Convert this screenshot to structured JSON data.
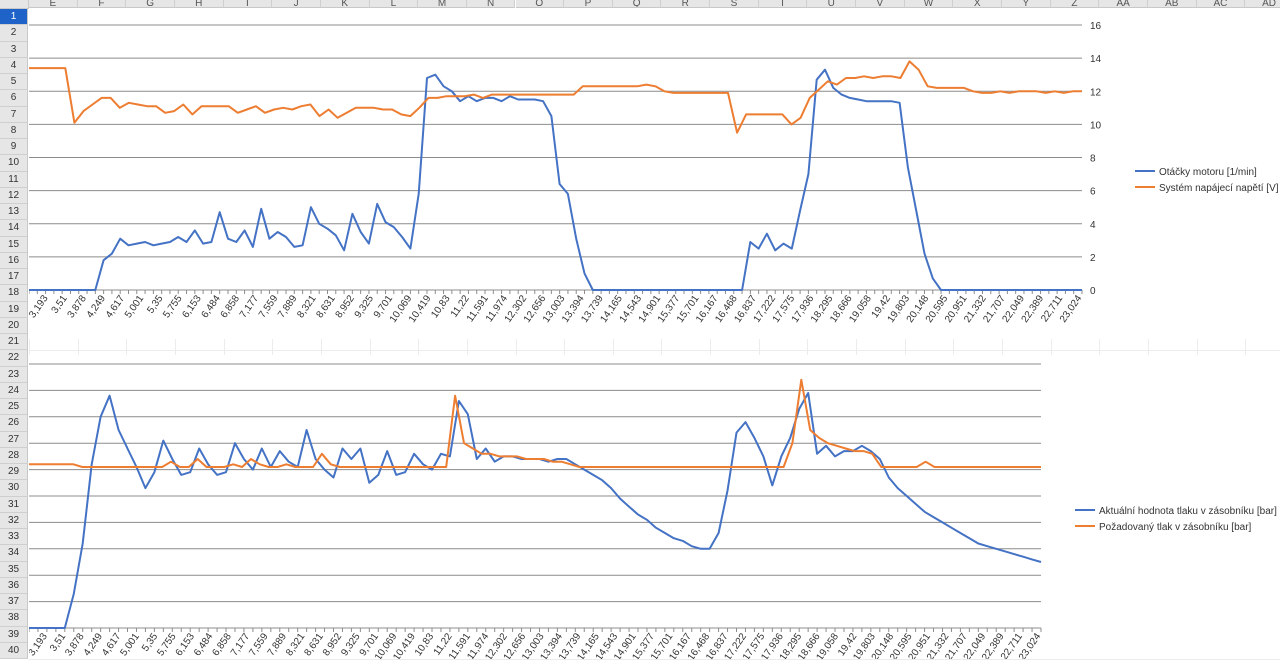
{
  "sheet": {
    "columns": [
      "E",
      "F",
      "G",
      "H",
      "I",
      "J",
      "K",
      "L",
      "M",
      "N",
      "O",
      "P",
      "Q",
      "R",
      "S",
      "T",
      "U",
      "V",
      "W",
      "X",
      "Y",
      "Z",
      "AA",
      "AB",
      "AC",
      "AD"
    ],
    "rows": [
      "1",
      "2",
      "3",
      "4",
      "5",
      "6",
      "7",
      "8",
      "9",
      "10",
      "11",
      "12",
      "13",
      "14",
      "15",
      "16",
      "17",
      "18",
      "19",
      "20",
      "21",
      "22",
      "23",
      "24",
      "25",
      "26",
      "27",
      "28",
      "29",
      "30",
      "31",
      "32",
      "33",
      "34",
      "35",
      "36",
      "37",
      "38",
      "39",
      "40"
    ],
    "selected_row": "1"
  },
  "chart_data": [
    {
      "type": "line",
      "y_right_axis": true,
      "ylim": [
        0,
        16
      ],
      "yticks": [
        "0",
        "2",
        "4",
        "6",
        "8",
        "10",
        "12",
        "14",
        "16"
      ],
      "x_tick_labels": [
        "2,802",
        "3,193",
        "3,51",
        "3,878",
        "4,249",
        "4,617",
        "5,001",
        "5,35",
        "5,755",
        "6,153",
        "6,484",
        "6,858",
        "7,177",
        "7,559",
        "7,889",
        "8,321",
        "8,631",
        "8,952",
        "9,325",
        "9,701",
        "10,069",
        "10,419",
        "10,83",
        "11,22",
        "11,591",
        "11,974",
        "12,302",
        "12,656",
        "13,003",
        "13,394",
        "13,739",
        "14,165",
        "14,543",
        "14,901",
        "15,377",
        "15,701",
        "16,167",
        "16,468",
        "16,837",
        "17,222",
        "17,575",
        "17,936",
        "18,295",
        "18,666",
        "19,058",
        "19,42",
        "19,803",
        "20,148",
        "20,595",
        "20,951",
        "21,332",
        "21,707",
        "22,049",
        "22,389",
        "22,711",
        "23,024"
      ],
      "legend_position": "right",
      "series": [
        {
          "name": "Otáčky motoru [1/min]",
          "color": "#4472c4",
          "values": [
            0,
            0,
            0,
            0,
            0,
            0,
            0,
            0,
            0,
            1.8,
            2.2,
            3.1,
            2.7,
            2.8,
            2.9,
            2.7,
            2.8,
            2.9,
            3.2,
            2.9,
            3.6,
            2.8,
            2.9,
            4.7,
            3.1,
            2.9,
            3.6,
            2.6,
            4.9,
            3.1,
            3.5,
            3.2,
            2.6,
            2.7,
            5.0,
            4.0,
            3.7,
            3.3,
            2.4,
            4.6,
            3.5,
            2.8,
            5.2,
            4.1,
            3.8,
            3.2,
            2.5,
            5.8,
            12.8,
            13.0,
            12.3,
            12.0,
            11.4,
            11.7,
            11.4,
            11.6,
            11.6,
            11.4,
            11.7,
            11.5,
            11.5,
            11.5,
            11.4,
            10.5,
            6.4,
            5.8,
            3.1,
            1.0,
            0,
            0,
            0,
            0,
            0,
            0,
            0,
            0,
            0,
            0,
            0,
            0,
            0,
            0,
            0,
            0,
            0,
            0,
            0,
            2.9,
            2.5,
            3.4,
            2.4,
            2.8,
            2.5,
            4.8,
            7.0,
            12.7,
            13.3,
            12.2,
            11.8,
            11.6,
            11.5,
            11.4,
            11.4,
            11.4,
            11.4,
            11.3,
            7.4,
            4.8,
            2.2,
            0.7,
            0,
            0,
            0,
            0,
            0,
            0,
            0,
            0,
            0,
            0,
            0,
            0,
            0,
            0,
            0,
            0,
            0,
            0
          ]
        },
        {
          "name": "Systém napájecí napětí [V]",
          "color": "#ed7d31",
          "values": [
            13.4,
            13.4,
            13.4,
            13.4,
            13.4,
            10.1,
            10.8,
            11.2,
            11.6,
            11.6,
            11.0,
            11.3,
            11.2,
            11.1,
            11.1,
            10.7,
            10.8,
            11.2,
            10.6,
            11.1,
            11.1,
            11.1,
            11.1,
            10.7,
            10.9,
            11.1,
            10.7,
            10.9,
            11.0,
            10.9,
            11.1,
            11.2,
            10.5,
            10.9,
            10.4,
            10.7,
            11.0,
            11.0,
            11.0,
            10.9,
            10.9,
            10.6,
            10.5,
            11.0,
            11.6,
            11.6,
            11.7,
            11.7,
            11.7,
            11.8,
            11.6,
            11.8,
            11.8,
            11.8,
            11.8,
            11.8,
            11.8,
            11.8,
            11.8,
            11.8,
            11.8,
            12.3,
            12.3,
            12.3,
            12.3,
            12.3,
            12.3,
            12.3,
            12.4,
            12.3,
            12.0,
            11.9,
            11.9,
            11.9,
            11.9,
            11.9,
            11.9,
            11.9,
            9.5,
            10.6,
            10.6,
            10.6,
            10.6,
            10.6,
            10.0,
            10.4,
            11.6,
            12.1,
            12.6,
            12.4,
            12.8,
            12.8,
            12.9,
            12.8,
            12.9,
            12.9,
            12.8,
            13.8,
            13.3,
            12.3,
            12.2,
            12.2,
            12.2,
            12.2,
            12.0,
            11.9,
            11.9,
            12.0,
            11.9,
            12.0,
            12.0,
            12.0,
            11.9,
            12.0,
            11.9,
            12.0,
            12.0
          ]
        }
      ]
    },
    {
      "type": "line",
      "x_tick_labels": [
        "2,802",
        "3,193",
        "3,51",
        "3,878",
        "4,249",
        "4,617",
        "5,001",
        "5,35",
        "5,755",
        "6,153",
        "6,484",
        "6,858",
        "7,177",
        "7,559",
        "7,889",
        "8,321",
        "8,631",
        "8,952",
        "9,325",
        "9,701",
        "10,069",
        "10,419",
        "10,83",
        "11,22",
        "11,591",
        "11,974",
        "12,302",
        "12,656",
        "13,003",
        "13,394",
        "13,739",
        "14,165",
        "14,543",
        "14,901",
        "15,377",
        "15,701",
        "16,167",
        "16,468",
        "16,837",
        "17,222",
        "17,575",
        "17,936",
        "18,295",
        "18,666",
        "19,058",
        "19,42",
        "19,803",
        "20,148",
        "20,595",
        "20,951",
        "21,332",
        "21,707",
        "22,049",
        "22,389",
        "22,711",
        "23,024"
      ],
      "ylim": [
        0,
        10
      ],
      "legend_position": "right",
      "series": [
        {
          "name": "Aktuální hodnota tlaku v zásobníku [bar]",
          "color": "#4472c4",
          "values": [
            0,
            0,
            0,
            0,
            0,
            1.3,
            3.2,
            6.2,
            8.0,
            8.8,
            7.5,
            6.8,
            6.1,
            5.3,
            5.9,
            7.1,
            6.4,
            5.8,
            5.9,
            6.8,
            6.2,
            5.8,
            5.9,
            7.0,
            6.4,
            6.0,
            6.8,
            6.1,
            6.7,
            6.3,
            6.1,
            7.5,
            6.4,
            6.0,
            5.7,
            6.8,
            6.4,
            6.8,
            5.5,
            5.8,
            6.7,
            5.8,
            5.9,
            6.6,
            6.2,
            6.0,
            6.6,
            6.5,
            8.6,
            8.1,
            6.4,
            6.8,
            6.3,
            6.5,
            6.5,
            6.4,
            6.4,
            6.4,
            6.3,
            6.4,
            6.4,
            6.2,
            6.0,
            5.8,
            5.6,
            5.3,
            4.9,
            4.6,
            4.3,
            4.1,
            3.8,
            3.6,
            3.4,
            3.3,
            3.1,
            3.0,
            3.0,
            3.6,
            5.2,
            7.4,
            7.8,
            7.2,
            6.5,
            5.4,
            6.5,
            7.2,
            8.3,
            8.9,
            6.6,
            6.9,
            6.5,
            6.7,
            6.7,
            6.9,
            6.7,
            6.4,
            5.7,
            5.3,
            5.0,
            4.7,
            4.4,
            4.2,
            4.0,
            3.8,
            3.6,
            3.4,
            3.2,
            3.1,
            3.0,
            2.9,
            2.8,
            2.7,
            2.6,
            2.5
          ]
        },
        {
          "name": "Požadovaný tlak v zásobníku [bar]",
          "color": "#ed7d31",
          "values": [
            6.2,
            6.2,
            6.2,
            6.2,
            6.2,
            6.2,
            6.1,
            6.1,
            6.1,
            6.1,
            6.1,
            6.1,
            6.1,
            6.1,
            6.1,
            6.1,
            6.3,
            6.1,
            6.1,
            6.4,
            6.1,
            6.1,
            6.1,
            6.2,
            6.1,
            6.4,
            6.2,
            6.1,
            6.1,
            6.2,
            6.1,
            6.1,
            6.1,
            6.6,
            6.2,
            6.1,
            6.1,
            6.1,
            6.1,
            6.1,
            6.1,
            6.1,
            6.1,
            6.1,
            6.1,
            6.1,
            6.1,
            6.1,
            8.8,
            7.0,
            6.8,
            6.6,
            6.6,
            6.5,
            6.5,
            6.5,
            6.4,
            6.4,
            6.4,
            6.3,
            6.3,
            6.2,
            6.1,
            6.1,
            6.1,
            6.1,
            6.1,
            6.1,
            6.1,
            6.1,
            6.1,
            6.1,
            6.1,
            6.1,
            6.1,
            6.1,
            6.1,
            6.1,
            6.1,
            6.1,
            6.1,
            6.1,
            6.1,
            6.1,
            6.1,
            6.1,
            7.0,
            9.4,
            7.5,
            7.2,
            7.0,
            6.9,
            6.8,
            6.7,
            6.7,
            6.6,
            6.1,
            6.1,
            6.1,
            6.1,
            6.1,
            6.3,
            6.1,
            6.1,
            6.1,
            6.1,
            6.1,
            6.1,
            6.1,
            6.1,
            6.1,
            6.1,
            6.1,
            6.1,
            6.1
          ]
        }
      ]
    }
  ]
}
